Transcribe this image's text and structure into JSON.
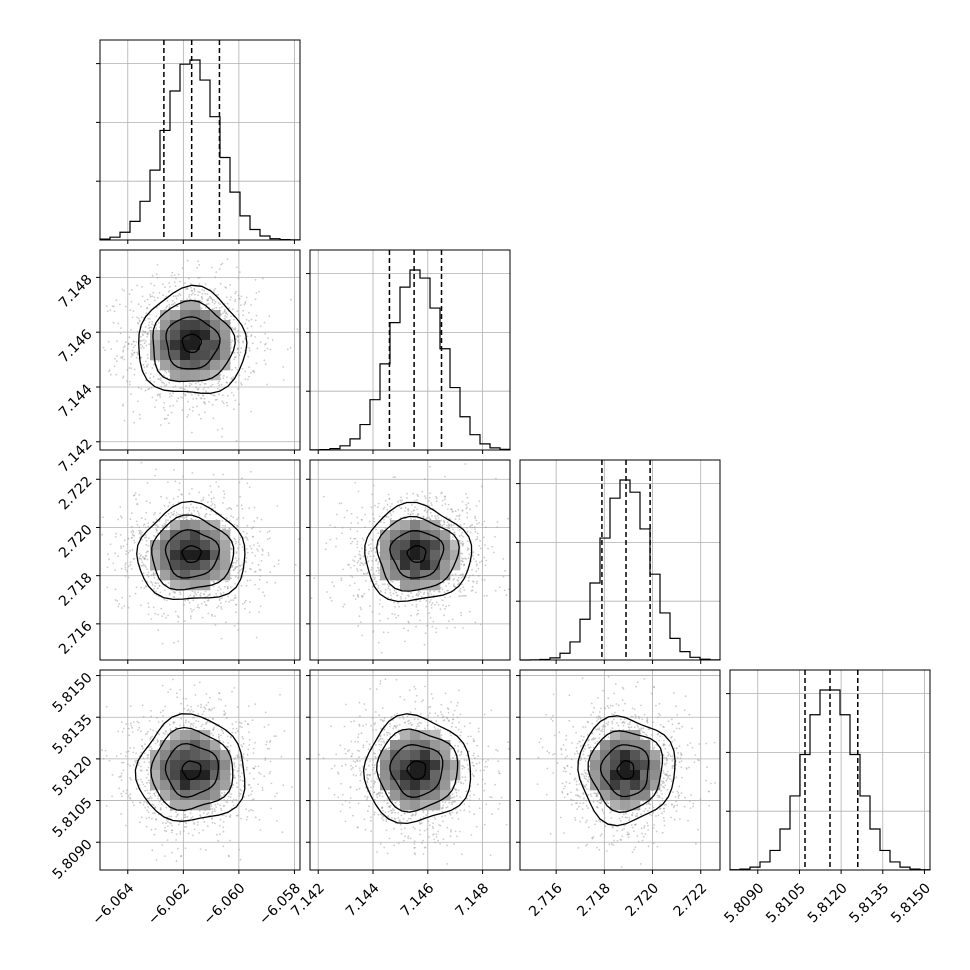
{
  "chart_data": {
    "type": "corner",
    "parameters": [
      {
        "range": [
          -6.065,
          -6.0578
        ],
        "ticks": [
          -6.064,
          -6.062,
          -6.06,
          -6.058
        ],
        "tick_labels": [
          "−6.064",
          "−6.062",
          "−6.060",
          "−6.058"
        ],
        "quantiles": [
          -6.0627,
          -6.0617,
          -6.0607
        ],
        "mean": -6.0617,
        "sd": 0.00095
      },
      {
        "range": [
          7.1417,
          7.149
        ],
        "ticks": [
          7.142,
          7.144,
          7.146,
          7.148
        ],
        "tick_labels": [
          "7.142",
          "7.144",
          "7.146",
          "7.148"
        ],
        "quantiles": [
          7.1446,
          7.1455,
          7.1465
        ],
        "mean": 7.1456,
        "sd": 0.00095
      },
      {
        "range": [
          2.7145,
          2.7228
        ],
        "ticks": [
          2.716,
          2.718,
          2.72,
          2.722
        ],
        "tick_labels": [
          "2.716",
          "2.718",
          "2.720",
          "2.722"
        ],
        "quantiles": [
          2.7179,
          2.7189,
          2.7199
        ],
        "mean": 2.7189,
        "sd": 0.00098
      },
      {
        "range": [
          5.808,
          5.8152
        ],
        "ticks": [
          5.809,
          5.8105,
          5.812,
          5.8135,
          5.815
        ],
        "tick_labels": [
          "5.8090",
          "5.8105",
          "5.8120",
          "5.8135",
          "5.8150"
        ],
        "quantiles": [
          5.8107,
          5.8116,
          5.8126
        ],
        "mean": 5.8116,
        "sd": 0.00093
      }
    ],
    "histogram_bins": 20,
    "contour_levels": 4,
    "grid": true
  }
}
